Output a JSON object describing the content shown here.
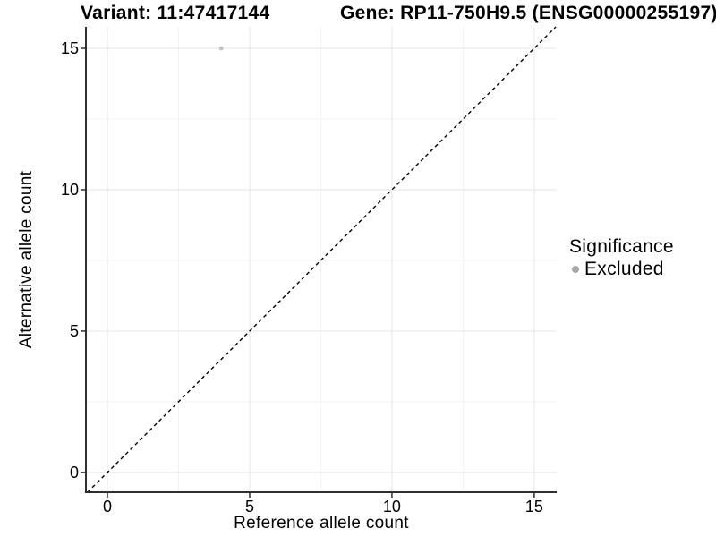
{
  "titles": {
    "variant": "Variant: 11:47417144",
    "gene": "Gene: RP11-750H9.5 (ENSG00000255197)"
  },
  "legend": {
    "title": "Significance",
    "items": [
      {
        "label": "Excluded",
        "color": "#a8a8a8"
      }
    ]
  },
  "chart_data": {
    "type": "scatter",
    "title_left": "Variant: 11:47417144",
    "title_right": "Gene: RP11-750H9.5 (ENSG00000255197)",
    "xlabel": "Reference allele count",
    "ylabel": "Alternative allele count",
    "xlim": [
      -0.755,
      15.79
    ],
    "ylim": [
      -0.7,
      15.76
    ],
    "x_ticks": [
      0,
      5,
      10,
      15
    ],
    "y_ticks": [
      0,
      5,
      10,
      15
    ],
    "x_minor_ticks": [
      2.5,
      7.5,
      12.5
    ],
    "y_minor_ticks": [
      2.5,
      7.5,
      12.5
    ],
    "grid": true,
    "legend_position": "right",
    "series": [
      {
        "name": "Excluded",
        "color": "#c3c3c3",
        "points": [
          {
            "x": 4,
            "y": 15
          }
        ]
      }
    ],
    "reference_line": {
      "type": "identity y=x",
      "style": "dashed",
      "color": "#000000"
    }
  },
  "colors": {
    "background": "#ffffff",
    "major_grid": "#e6e6e6",
    "minor_grid": "#f3f3f3",
    "axis": "#2f2f2f",
    "text": "#000000"
  }
}
